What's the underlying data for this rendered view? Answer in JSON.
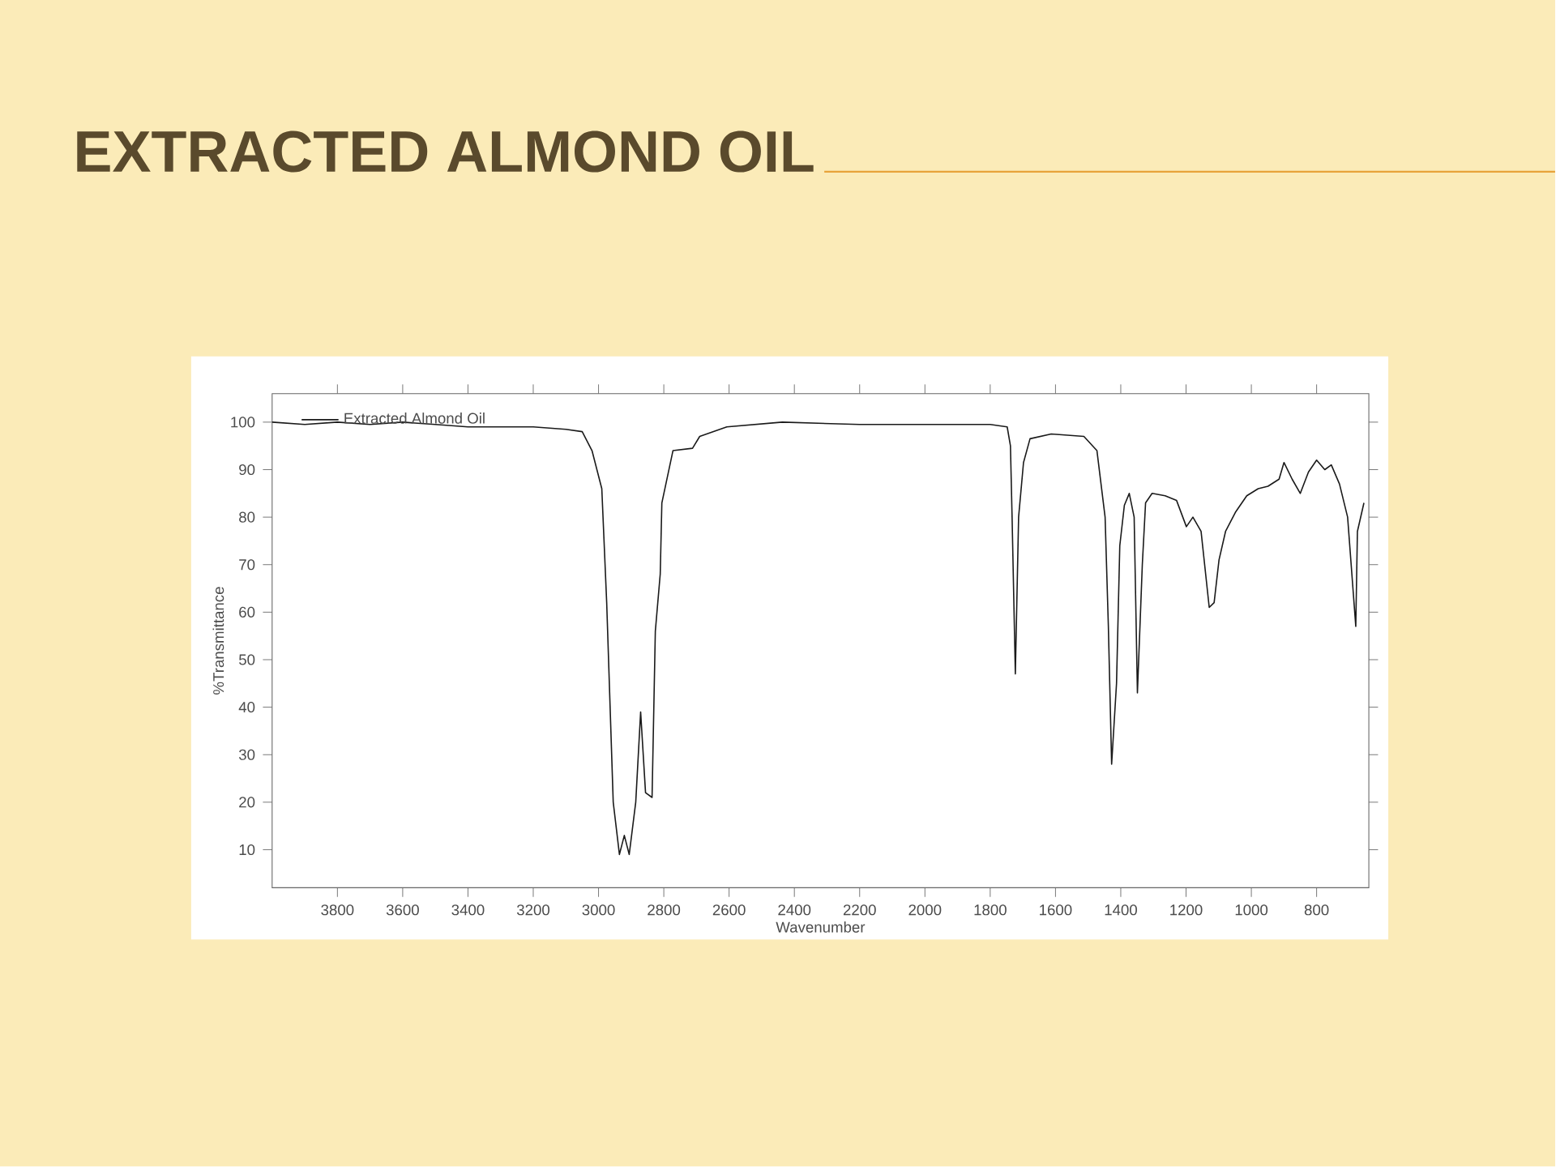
{
  "chart_data": {
    "type": "line",
    "title": "EXTRACTED ALMOND OIL",
    "xlabel": "Wavenumber",
    "ylabel": "%Transmittance",
    "xlim": [
      4000,
      640
    ],
    "ylim": [
      2,
      106
    ],
    "xticks": [
      3800,
      3600,
      3400,
      3200,
      3000,
      2800,
      2600,
      2400,
      2200,
      2000,
      1800,
      1600,
      1400,
      1200,
      1000,
      800
    ],
    "yticks": [
      10,
      20,
      30,
      40,
      50,
      60,
      70,
      80,
      90,
      100
    ],
    "legend": "top left",
    "grid": false,
    "marker": "none",
    "line_style": "solid",
    "series": [
      {
        "name": "Extracted Almond Oil",
        "color": "#1a1a1a",
        "x": [
          4000,
          3900,
          3800,
          3700,
          3600,
          3500,
          3400,
          3300,
          3200,
          3100,
          3050,
          3020,
          2990,
          2975,
          2955,
          2936,
          2921,
          2906,
          2886,
          2871,
          2856,
          2836,
          2826,
          2811,
          2806,
          2772,
          2712,
          2690,
          2607,
          2437,
          2200,
          2000,
          1800,
          1748,
          1738,
          1733,
          1723,
          1713,
          1698,
          1678,
          1613,
          1513,
          1473,
          1448,
          1438,
          1428,
          1413,
          1403,
          1389,
          1374,
          1359,
          1349,
          1334,
          1324,
          1304,
          1264,
          1229,
          1199,
          1179,
          1154,
          1129,
          1114,
          1099,
          1079,
          1049,
          1014,
          979,
          949,
          915,
          900,
          875,
          850,
          825,
          800,
          775,
          755,
          730,
          705,
          680,
          675,
          655
        ],
        "values": [
          100,
          99.5,
          100,
          99.5,
          100,
          99.5,
          99,
          99,
          99,
          98.5,
          98,
          94,
          86,
          62,
          20,
          9,
          13,
          9,
          20,
          39,
          22,
          21,
          56,
          68,
          83,
          94,
          94.5,
          97,
          99,
          100,
          99.5,
          99.5,
          99.5,
          99,
          95,
          80,
          47,
          80,
          91.5,
          96.5,
          97.5,
          97,
          94,
          80,
          57,
          28,
          45,
          74,
          82.5,
          85,
          80,
          43,
          70,
          83,
          85,
          84.5,
          83.5,
          78,
          80,
          77,
          61,
          62,
          71,
          77,
          81,
          84.5,
          86,
          86.5,
          88,
          91.5,
          88,
          85,
          89.5,
          92,
          90,
          91,
          87,
          80,
          57,
          77,
          83
        ]
      }
    ]
  }
}
